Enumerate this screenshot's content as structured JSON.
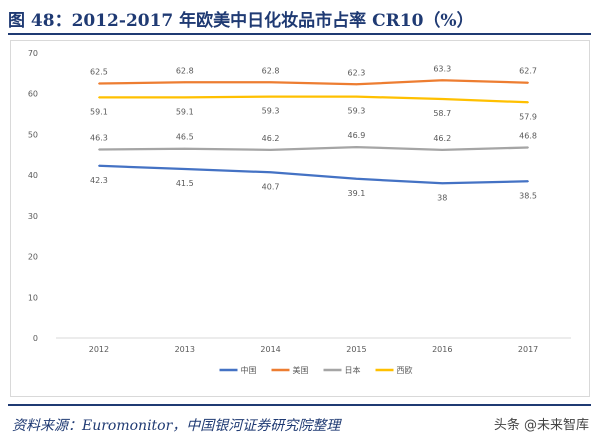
{
  "header": {
    "title": "图 48：2012-2017 年欧美中日化妆品市占率 CR10（%）"
  },
  "footer": {
    "source": "资料来源：Euromonitor，中国银河证券研究院整理",
    "watermark": "头条 @未来智库"
  },
  "chart_data": {
    "type": "line",
    "title": "",
    "xlabel": "",
    "ylabel": "",
    "x": [
      "2012",
      "2013",
      "2014",
      "2015",
      "2016",
      "2017"
    ],
    "ylim": [
      0,
      70
    ],
    "yticks": [
      0,
      10,
      20,
      30,
      40,
      50,
      60,
      70
    ],
    "grid": false,
    "legend_position": "bottom",
    "series": [
      {
        "name": "中国",
        "color": "#4472c4",
        "values": [
          42.3,
          41.5,
          40.7,
          39.1,
          38,
          38.5
        ],
        "labels": [
          "42.3",
          "41.5",
          "40.7",
          "39.1",
          "38",
          "38.5"
        ],
        "label_side": "below"
      },
      {
        "name": "美国",
        "color": "#ed7d31",
        "values": [
          62.5,
          62.8,
          62.8,
          62.3,
          63.3,
          62.7
        ],
        "labels": [
          "62.5",
          "62.8",
          "62.8",
          "62.3",
          "63.3",
          "62.7"
        ],
        "label_side": "above"
      },
      {
        "name": "日本",
        "color": "#a5a5a5",
        "values": [
          46.3,
          46.5,
          46.2,
          46.9,
          46.2,
          46.8
        ],
        "labels": [
          "46.3",
          "46.5",
          "46.2",
          "46.9",
          "46.2",
          "46.8"
        ],
        "label_side": "above"
      },
      {
        "name": "西欧",
        "color": "#ffc000",
        "values": [
          59.1,
          59.1,
          59.3,
          59.3,
          58.7,
          57.9
        ],
        "labels": [
          "59.1",
          "59.1",
          "59.3",
          "59.3",
          "58.7",
          "57.9"
        ],
        "label_side": "below"
      }
    ]
  }
}
